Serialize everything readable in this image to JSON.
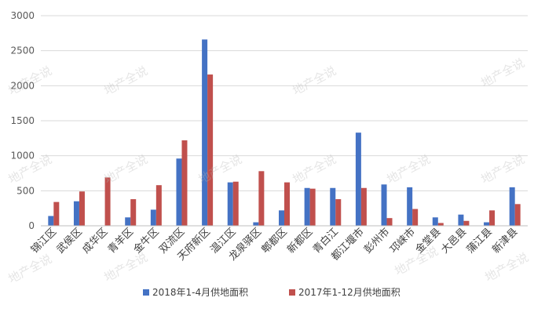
{
  "watermark_text": "地产全说",
  "chart_data": {
    "type": "bar",
    "title": "",
    "xlabel": "",
    "ylabel": "",
    "ylim": [
      0,
      3000
    ],
    "yticks": [
      0,
      500,
      1000,
      1500,
      2000,
      2500,
      3000
    ],
    "grid": true,
    "legend_position": "bottom",
    "categories": [
      "锦江区",
      "武侯区",
      "成华区",
      "青羊区",
      "金牛区",
      "双流区",
      "天府新区",
      "温江区",
      "龙泉驿区",
      "郫都区",
      "新都区",
      "青白江",
      "都江堰市",
      "彭州市",
      "邛崃市",
      "金堂县",
      "大邑县",
      "蒲江县",
      "新津县"
    ],
    "series": [
      {
        "name": "2018年1-4月供地面积",
        "color": "#4472C4",
        "values": [
          140,
          350,
          0,
          120,
          230,
          960,
          2660,
          620,
          50,
          220,
          540,
          540,
          1330,
          590,
          550,
          120,
          160,
          50,
          550
        ]
      },
      {
        "name": "2017年1-12月供地面积",
        "color": "#C0504D",
        "values": [
          340,
          490,
          690,
          380,
          580,
          1220,
          2160,
          630,
          780,
          620,
          530,
          380,
          540,
          110,
          240,
          40,
          70,
          220,
          310
        ]
      }
    ]
  }
}
